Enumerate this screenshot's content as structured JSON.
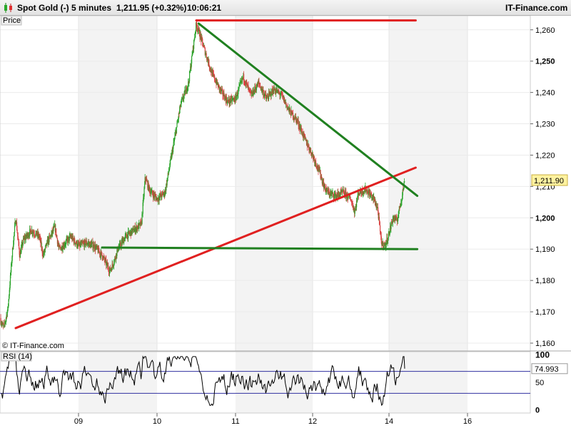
{
  "header": {
    "instrument": "Spot Gold (-)",
    "timeframe": "5 minutes",
    "last_change": "1,211.95 (+0.32%)",
    "time": "10:06:21",
    "source": "IT-Finance.com"
  },
  "chart_data": [
    {
      "type": "candlestick",
      "panel_label": "Price",
      "watermark": "© IT-Finance.com",
      "y_ticks": [
        {
          "value": 1160,
          "label": "1,160"
        },
        {
          "value": 1170,
          "label": "1,170"
        },
        {
          "value": 1180,
          "label": "1,180"
        },
        {
          "value": 1190,
          "label": "1,190"
        },
        {
          "value": 1200,
          "label": "1,200"
        },
        {
          "value": 1210,
          "label": "1,210"
        },
        {
          "value": 1220,
          "label": "1,220"
        },
        {
          "value": 1230,
          "label": "1,230"
        },
        {
          "value": 1240,
          "label": "1,240"
        },
        {
          "value": 1250,
          "label": "1,250"
        },
        {
          "value": 1260,
          "label": "1,260"
        }
      ],
      "bold_ticks": [
        1200,
        1250
      ],
      "ylim": [
        1157.5,
        1264.5
      ],
      "x_days": [
        "09",
        "10",
        "11",
        "12",
        "14",
        "16"
      ],
      "last_price_label": "1,211.90",
      "last_price": 1211.9,
      "path": [
        [
          0.0,
          1168
        ],
        [
          0.025,
          1166
        ],
        [
          0.05,
          1165
        ],
        [
          0.1,
          1171
        ],
        [
          0.16,
          1190
        ],
        [
          0.2,
          1200
        ],
        [
          0.25,
          1188
        ],
        [
          0.3,
          1193
        ],
        [
          0.4,
          1196
        ],
        [
          0.5,
          1194
        ],
        [
          0.55,
          1188
        ],
        [
          0.6,
          1192
        ],
        [
          0.7,
          1197
        ],
        [
          0.75,
          1190
        ],
        [
          0.8,
          1191
        ],
        [
          0.9,
          1194
        ],
        [
          1.0,
          1191
        ],
        [
          1.1,
          1192
        ],
        [
          1.2,
          1191
        ],
        [
          1.3,
          1188
        ],
        [
          1.4,
          1183
        ],
        [
          1.45,
          1186
        ],
        [
          1.5,
          1190
        ],
        [
          1.6,
          1194
        ],
        [
          1.7,
          1196
        ],
        [
          1.8,
          1198
        ],
        [
          1.85,
          1213
        ],
        [
          1.9,
          1209
        ],
        [
          2.0,
          1206
        ],
        [
          2.1,
          1208
        ],
        [
          2.2,
          1222
        ],
        [
          2.3,
          1236
        ],
        [
          2.4,
          1243
        ],
        [
          2.5,
          1262
        ],
        [
          2.6,
          1254
        ],
        [
          2.7,
          1246
        ],
        [
          2.8,
          1241
        ],
        [
          2.9,
          1237
        ],
        [
          3.0,
          1238
        ],
        [
          3.1,
          1245
        ],
        [
          3.2,
          1239
        ],
        [
          3.3,
          1243
        ],
        [
          3.4,
          1238
        ],
        [
          3.5,
          1241
        ],
        [
          3.6,
          1239
        ],
        [
          3.7,
          1234
        ],
        [
          3.8,
          1231
        ],
        [
          3.9,
          1225
        ],
        [
          4.0,
          1220
        ],
        [
          4.1,
          1214
        ],
        [
          4.15,
          1210
        ],
        [
          4.2,
          1208
        ],
        [
          4.3,
          1207
        ],
        [
          4.4,
          1208
        ],
        [
          4.5,
          1206
        ],
        [
          4.55,
          1202
        ],
        [
          4.6,
          1208
        ],
        [
          4.7,
          1209
        ],
        [
          4.8,
          1206
        ],
        [
          4.85,
          1203
        ],
        [
          4.9,
          1192
        ],
        [
          4.95,
          1191
        ],
        [
          5.0,
          1195
        ],
        [
          5.05,
          1200
        ],
        [
          5.1,
          1199
        ],
        [
          5.15,
          1205
        ],
        [
          5.2,
          1211.9
        ]
      ],
      "trendlines": [
        {
          "color": "#e02020",
          "start": [
            0.2,
            1164.8
          ],
          "end": [
            5.34,
            1216
          ]
        },
        {
          "color": "#e02020",
          "start": [
            2.5,
            1263
          ],
          "end": [
            5.34,
            1263
          ]
        },
        {
          "color": "#208020",
          "start": [
            2.53,
            1262
          ],
          "end": [
            5.36,
            1207
          ]
        },
        {
          "color": "#208020",
          "start": [
            1.3,
            1190.5
          ],
          "end": [
            5.36,
            1190
          ]
        }
      ]
    },
    {
      "type": "line",
      "panel_label": "RSI (14)",
      "y_ticks": [
        {
          "value": 0,
          "label": "0"
        },
        {
          "value": 50,
          "label": "50"
        },
        {
          "value": 100,
          "label": "100"
        }
      ],
      "ylim": [
        -6,
        106
      ],
      "levels": [
        30,
        70
      ],
      "last_value_label": "74.993",
      "last_value": 74.993,
      "series_color": "#000000"
    }
  ]
}
